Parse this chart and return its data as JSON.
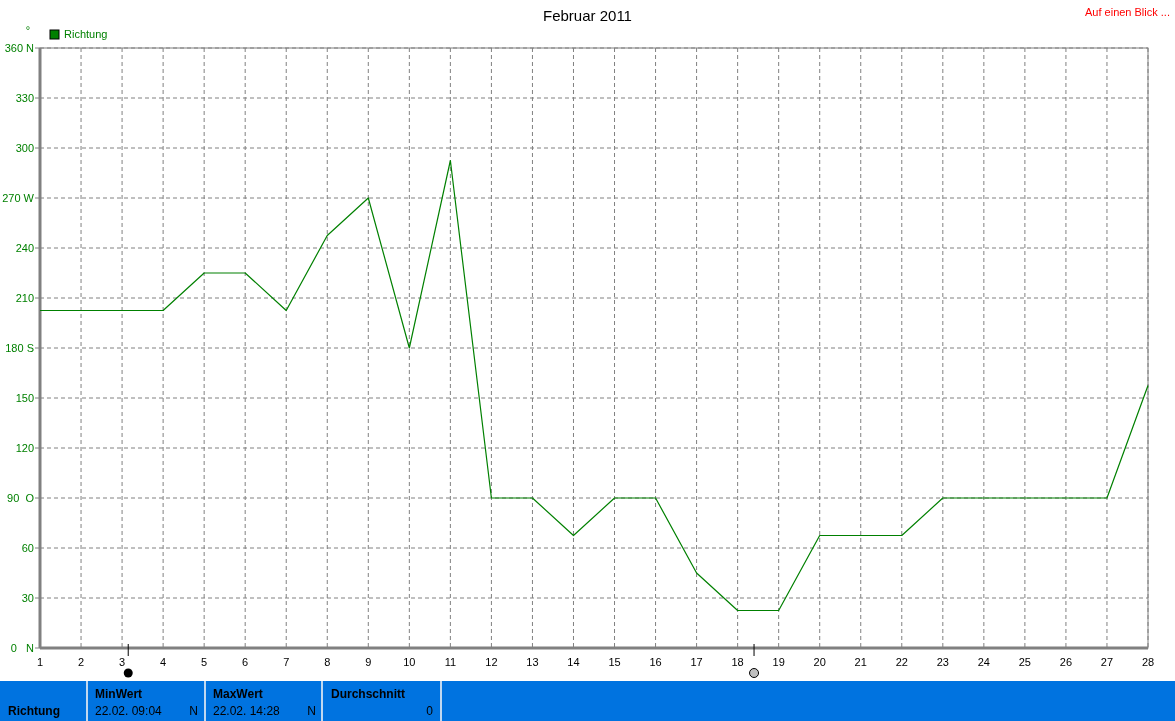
{
  "chart_data": {
    "type": "line",
    "title": "Februar 2011",
    "ylabel": "°",
    "legend": "top left",
    "grid": true,
    "marker": "none",
    "line_style": "solid",
    "annotations": [
      "Auf einen Blick ...",
      "Richtung",
      "MinWert",
      "22.02.  09:04",
      "N",
      "MaxWert",
      "22.02.  14:28",
      "N",
      "Durchschnitt",
      "0"
    ],
    "x": [
      1,
      2,
      3,
      4,
      5,
      6,
      7,
      8,
      9,
      10,
      11,
      12,
      13,
      14,
      15,
      16,
      17,
      18,
      19,
      20,
      21,
      22,
      23,
      24,
      25,
      26,
      27,
      28
    ],
    "xlim": [
      1,
      28
    ],
    "xticks": [
      1,
      2,
      3,
      4,
      5,
      6,
      7,
      8,
      9,
      10,
      11,
      12,
      13,
      14,
      15,
      16,
      17,
      18,
      19,
      20,
      21,
      22,
      23,
      24,
      25,
      26,
      27,
      28
    ],
    "ylim": [
      0,
      360
    ],
    "yticks": [
      {
        "value": 0,
        "label": "0   N"
      },
      30,
      60,
      {
        "value": 90,
        "label": "90  O"
      },
      120,
      150,
      {
        "value": 180,
        "label": "180 S"
      },
      210,
      240,
      {
        "value": 270,
        "label": "270 W"
      },
      300,
      330,
      {
        "value": 360,
        "label": "360 N"
      }
    ],
    "series": [
      {
        "name": "Richtung",
        "color": "#008000",
        "values": [
          202.5,
          202.5,
          202.5,
          202.5,
          225,
          225,
          202.5,
          247.5,
          270,
          180,
          292.5,
          90,
          90,
          67.5,
          90,
          90,
          45,
          22.5,
          22.5,
          67.5,
          67.5,
          67.5,
          90,
          90,
          90,
          90,
          90,
          157.5
        ]
      }
    ]
  }
}
